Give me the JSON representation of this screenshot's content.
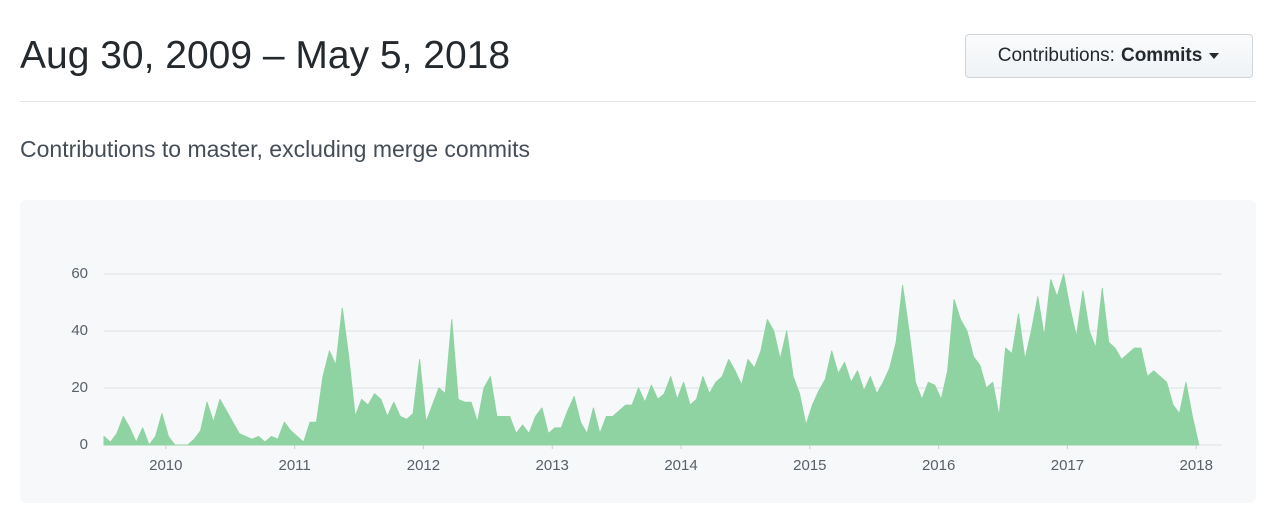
{
  "header": {
    "title": "Aug 30, 2009 – May 5, 2018"
  },
  "button": {
    "label": "Contributions:",
    "value": "Commits"
  },
  "subtitle": "Contributions to master, excluding merge commits",
  "chart_data": {
    "type": "area",
    "color": "#8fd3a3",
    "grid": true,
    "xlim": [
      2009.52,
      2018.2
    ],
    "ylim": [
      0,
      70
    ],
    "xticks": [
      2010,
      2011,
      2012,
      2013,
      2014,
      2015,
      2016,
      2017,
      2018
    ],
    "yticks": [
      0,
      20,
      40,
      60
    ],
    "x": [
      2009.52,
      2009.57,
      2009.62,
      2009.67,
      2009.72,
      2009.77,
      2009.82,
      2009.87,
      2009.92,
      2009.97,
      2010.02,
      2010.07,
      2010.12,
      2010.17,
      2010.22,
      2010.27,
      2010.32,
      2010.37,
      2010.42,
      2010.47,
      2010.52,
      2010.57,
      2010.62,
      2010.67,
      2010.72,
      2010.77,
      2010.82,
      2010.87,
      2010.92,
      2010.97,
      2011.02,
      2011.07,
      2011.12,
      2011.17,
      2011.22,
      2011.27,
      2011.32,
      2011.37,
      2011.42,
      2011.47,
      2011.52,
      2011.57,
      2011.62,
      2011.67,
      2011.72,
      2011.77,
      2011.82,
      2011.87,
      2011.92,
      2011.97,
      2012.02,
      2012.07,
      2012.12,
      2012.17,
      2012.22,
      2012.27,
      2012.32,
      2012.37,
      2012.42,
      2012.47,
      2012.52,
      2012.57,
      2012.62,
      2012.67,
      2012.72,
      2012.77,
      2012.82,
      2012.87,
      2012.92,
      2012.97,
      2013.02,
      2013.07,
      2013.12,
      2013.17,
      2013.22,
      2013.27,
      2013.32,
      2013.37,
      2013.42,
      2013.47,
      2013.52,
      2013.57,
      2013.62,
      2013.67,
      2013.72,
      2013.77,
      2013.82,
      2013.87,
      2013.92,
      2013.97,
      2014.02,
      2014.07,
      2014.12,
      2014.17,
      2014.22,
      2014.27,
      2014.32,
      2014.37,
      2014.42,
      2014.47,
      2014.52,
      2014.57,
      2014.62,
      2014.67,
      2014.72,
      2014.77,
      2014.82,
      2014.87,
      2014.92,
      2014.97,
      2015.02,
      2015.07,
      2015.12,
      2015.17,
      2015.22,
      2015.27,
      2015.32,
      2015.37,
      2015.42,
      2015.47,
      2015.52,
      2015.57,
      2015.62,
      2015.67,
      2015.72,
      2015.77,
      2015.82,
      2015.87,
      2015.92,
      2015.97,
      2016.02,
      2016.07,
      2016.12,
      2016.17,
      2016.22,
      2016.27,
      2016.32,
      2016.37,
      2016.42,
      2016.47,
      2016.52,
      2016.57,
      2016.62,
      2016.67,
      2016.72,
      2016.77,
      2016.82,
      2016.87,
      2016.92,
      2016.97,
      2017.02,
      2017.07,
      2017.12,
      2017.17,
      2017.22,
      2017.27,
      2017.32,
      2017.37,
      2017.42,
      2017.47,
      2017.52,
      2017.57,
      2017.62,
      2017.67,
      2017.72,
      2017.77,
      2017.82,
      2017.87,
      2017.92,
      2017.97,
      2018.02
    ],
    "values": [
      3,
      1,
      4,
      10,
      6,
      1,
      6,
      0,
      3,
      11,
      3,
      0,
      0,
      0,
      2,
      5,
      15,
      8,
      16,
      12,
      8,
      4,
      3,
      2,
      3,
      1,
      3,
      2,
      8,
      5,
      3,
      1,
      8,
      8,
      24,
      33,
      28,
      48,
      31,
      10,
      16,
      14,
      18,
      16,
      10,
      15,
      10,
      9,
      11,
      30,
      8,
      14,
      20,
      18,
      44,
      16,
      15,
      15,
      8,
      20,
      24,
      10,
      10,
      10,
      4,
      7,
      4,
      10,
      13,
      4,
      6,
      6,
      12,
      17,
      8,
      4,
      13,
      4,
      10,
      10,
      12,
      14,
      14,
      20,
      15,
      21,
      16,
      18,
      24,
      16,
      22,
      14,
      16,
      24,
      18,
      22,
      24,
      30,
      26,
      21,
      30,
      27,
      33,
      44,
      40,
      30,
      40,
      24,
      18,
      7,
      14,
      19,
      23,
      33,
      25,
      29,
      22,
      26,
      19,
      24,
      18,
      22,
      27,
      36,
      56,
      40,
      22,
      16,
      22,
      21,
      16,
      26,
      51,
      44,
      40,
      31,
      28,
      20,
      22,
      10,
      34,
      32,
      46,
      30,
      40,
      52,
      38,
      58,
      52,
      60,
      48,
      38,
      54,
      40,
      34,
      55,
      36,
      34,
      30,
      32,
      34,
      34,
      24,
      26,
      24,
      22,
      14,
      11,
      22,
      10,
      0
    ]
  }
}
